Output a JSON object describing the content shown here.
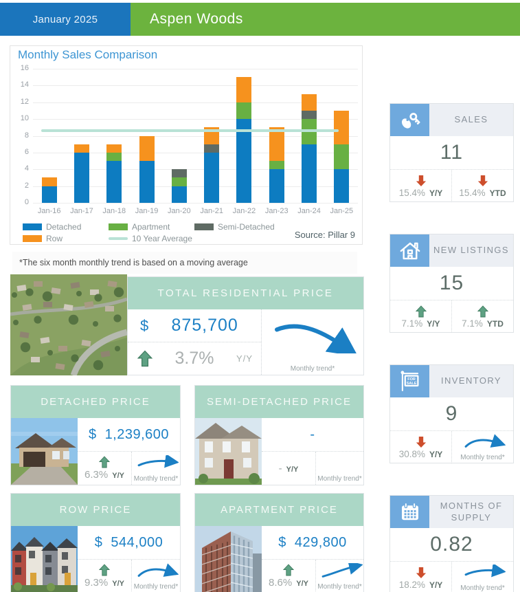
{
  "header": {
    "date": "January 2025",
    "community": "Aspen Woods"
  },
  "chart": {
    "title": "Monthly Sales Comparison",
    "source": "Source: Pillar 9",
    "footnote": "*The six month monthly trend is based on a moving average"
  },
  "chart_data": {
    "type": "bar",
    "stacked": true,
    "categories": [
      "Jan-16",
      "Jan-17",
      "Jan-18",
      "Jan-19",
      "Jan-20",
      "Jan-21",
      "Jan-22",
      "Jan-23",
      "Jan-24",
      "Jan-25"
    ],
    "series": [
      {
        "name": "Detached",
        "color": "#0d7cc1",
        "values": [
          2,
          6,
          5,
          5,
          2,
          6,
          10,
          4,
          7,
          4
        ]
      },
      {
        "name": "Apartment",
        "color": "#68b043",
        "values": [
          0,
          0,
          1,
          0,
          1,
          0,
          2,
          1,
          3,
          3
        ]
      },
      {
        "name": "Semi-Detached",
        "color": "#5f6b64",
        "values": [
          0,
          0,
          0,
          0,
          1,
          1,
          0,
          0,
          1,
          0
        ]
      },
      {
        "name": "Row",
        "color": "#f6921e",
        "values": [
          1,
          1,
          1,
          3,
          0,
          2,
          3,
          4,
          2,
          4
        ]
      }
    ],
    "totals": [
      3,
      7,
      7,
      8,
      4,
      9,
      15,
      9,
      13,
      11
    ],
    "average_line": {
      "name": "10 Year Average",
      "value": 8.6,
      "color": "#b9e2d6"
    },
    "title": "Monthly Sales Comparison",
    "xlabel": "",
    "ylabel": "",
    "ylim": [
      0,
      16
    ],
    "ytick_step": 2,
    "grid": true,
    "legend_position": "bottom"
  },
  "hero": {
    "title": "TOTAL RESIDENTIAL PRICE",
    "currency": "$",
    "amount": "875,700",
    "direction": "up",
    "pct": "3.7%",
    "pct_label": "Y/Y",
    "trend": {
      "kind": "down",
      "label": "Monthly trend*"
    },
    "photo": "aerial-neighborhood-photo"
  },
  "prices": [
    {
      "title": "DETACHED PRICE",
      "currency": "$",
      "amount": "1,239,600",
      "direction": "up",
      "pct": "6.3%",
      "pct_label": "Y/Y",
      "trend": {
        "kind": "flat",
        "label": "Monthly trend*"
      },
      "photo": "detached-house-photo"
    },
    {
      "title": "SEMI-DETACHED PRICE",
      "currency": "",
      "amount": "-",
      "direction": "none",
      "pct": "-",
      "pct_label": "Y/Y",
      "trend": {
        "kind": "none",
        "label": "Monthly trend*"
      },
      "photo": "semi-detached-house-photo"
    },
    {
      "title": "ROW PRICE",
      "currency": "$",
      "amount": "544,000",
      "direction": "up",
      "pct": "9.3%",
      "pct_label": "Y/Y",
      "trend": {
        "kind": "arc",
        "label": "Monthly trend*"
      },
      "photo": "row-townhouse-photo"
    },
    {
      "title": "APARTMENT PRICE",
      "currency": "$",
      "amount": "429,800",
      "direction": "up",
      "pct": "8.6%",
      "pct_label": "Y/Y",
      "trend": {
        "kind": "up",
        "label": "Monthly trend*"
      },
      "photo": "apartment-building-photo"
    }
  ],
  "stats": [
    {
      "title": "SALES",
      "icon": "keys-icon",
      "value": "11",
      "metrics": [
        {
          "direction": "down",
          "pct": "15.4%",
          "label": "Y/Y"
        },
        {
          "direction": "down",
          "pct": "15.4%",
          "label": "YTD"
        }
      ]
    },
    {
      "title": "NEW LISTINGS",
      "icon": "house-icon",
      "value": "15",
      "metrics": [
        {
          "direction": "up",
          "pct": "7.1%",
          "label": "Y/Y"
        },
        {
          "direction": "up",
          "pct": "7.1%",
          "label": "YTD"
        }
      ]
    },
    {
      "title": "INVENTORY",
      "icon": "for-sale-sign-icon",
      "value": "9",
      "metrics": [
        {
          "direction": "down",
          "pct": "30.8%",
          "label": "Y/Y"
        }
      ],
      "trend": {
        "kind": "arc",
        "label": "Monthly trend*"
      }
    },
    {
      "title": "MONTHS OF SUPPLY",
      "icon": "calendar-icon",
      "value": "0.82",
      "metrics": [
        {
          "direction": "down",
          "pct": "18.2%",
          "label": "Y/Y"
        }
      ],
      "trend": {
        "kind": "flat",
        "label": "Monthly trend*"
      }
    }
  ],
  "colors": {
    "header_blue": "#1b75bc",
    "header_green": "#6cb33e",
    "price_blue": "#1c80c5",
    "teal_header": "#abd7c6",
    "up_green": "#5ea183",
    "up_green_dark": "#3e7a5e",
    "down_red": "#cd4e2c",
    "trend_blue": "#1b7fc4",
    "icon_blue": "#6fa9dd"
  }
}
